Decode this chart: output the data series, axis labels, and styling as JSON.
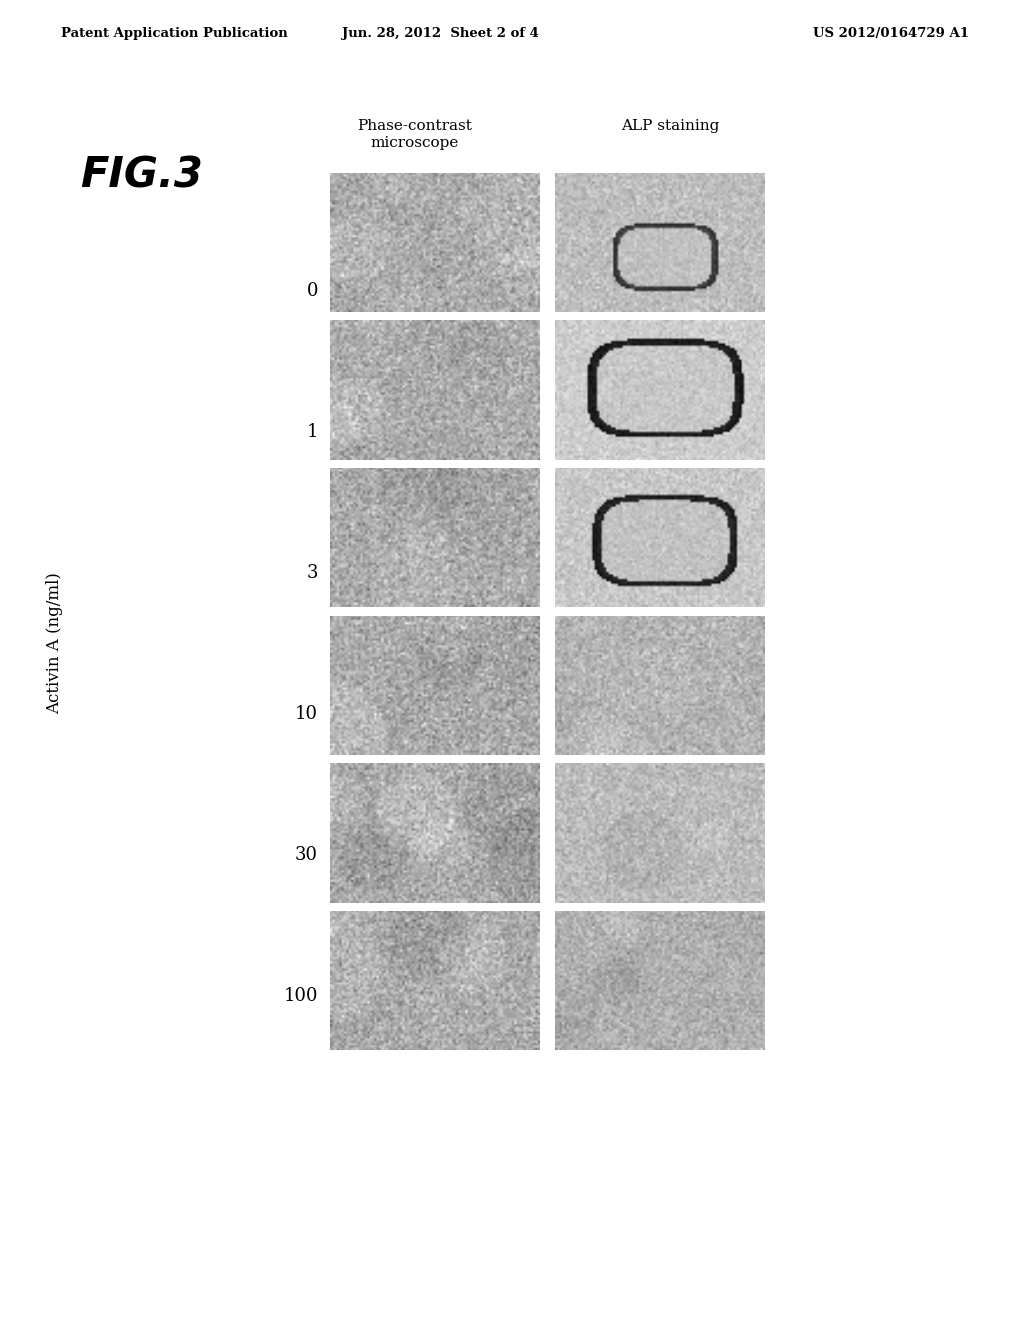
{
  "header_left": "Patent Application Publication",
  "header_mid": "Jun. 28, 2012  Sheet 2 of 4",
  "header_right": "US 2012/0164729 A1",
  "figure_label": "FIG.3",
  "col1_label": "Phase-contrast\nmicroscope",
  "col2_label": "ALP staining",
  "ylabel": "Activin A (ng/ml)",
  "row_labels": [
    "0",
    "1",
    "3",
    "10",
    "30",
    "100"
  ],
  "bg_color": "#ffffff",
  "header_fontsize": 9.5,
  "fig_label_fontsize": 30,
  "col_label_fontsize": 11,
  "row_label_fontsize": 13,
  "ylabel_fontsize": 12
}
